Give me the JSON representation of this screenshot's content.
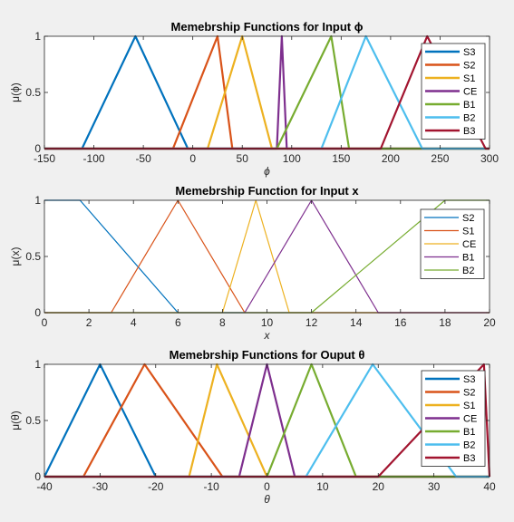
{
  "chart_data": [
    {
      "type": "line",
      "title": "Memebrship Functions for Input ϕ",
      "xlabel": "ϕ",
      "ylabel": "μ(ϕ)",
      "xlim": [
        -150,
        300
      ],
      "ylim": [
        0,
        1
      ],
      "xticks": [
        -150,
        -100,
        -50,
        0,
        50,
        100,
        150,
        200,
        250,
        300
      ],
      "yticks": [
        0,
        0.5,
        1
      ],
      "xtick_labels": [
        "-150",
        "-100",
        "-50",
        "0",
        "50",
        "100",
        "150",
        "200",
        "250",
        "300"
      ],
      "ytick_labels": [
        "0",
        "0.5",
        "1"
      ],
      "grid": false,
      "legend_position": "top-right",
      "series": [
        {
          "name": "S3",
          "color": "#0072bd",
          "x": [
            -150,
            -112,
            -58,
            -5,
            300
          ],
          "y": [
            0,
            0,
            1,
            0,
            0
          ]
        },
        {
          "name": "S2",
          "color": "#d95319",
          "x": [
            -150,
            -20,
            25,
            40,
            300
          ],
          "y": [
            0,
            0,
            1,
            0,
            0
          ]
        },
        {
          "name": "S1",
          "color": "#edb120",
          "x": [
            -150,
            15,
            50,
            80,
            300
          ],
          "y": [
            0,
            0,
            1,
            0,
            0
          ]
        },
        {
          "name": "CE",
          "color": "#7e2f8e",
          "x": [
            -150,
            85,
            90,
            95,
            300
          ],
          "y": [
            0,
            0,
            1,
            0,
            0
          ]
        },
        {
          "name": "B1",
          "color": "#77ac30",
          "x": [
            -150,
            85,
            140,
            158,
            300
          ],
          "y": [
            0,
            0,
            1,
            0,
            0
          ]
        },
        {
          "name": "B2",
          "color": "#4dbeee",
          "x": [
            -150,
            130,
            175,
            232,
            300
          ],
          "y": [
            0,
            0,
            1,
            0,
            0
          ]
        },
        {
          "name": "B3",
          "color": "#a2142f",
          "x": [
            -150,
            190,
            237,
            296,
            300
          ],
          "y": [
            0,
            0,
            1,
            0,
            0
          ]
        }
      ]
    },
    {
      "type": "line",
      "title": "Memebrship Function for Input x",
      "xlabel": "x",
      "ylabel": "μ(x)",
      "xlim": [
        0,
        20
      ],
      "ylim": [
        0,
        1
      ],
      "xticks": [
        0,
        2,
        4,
        6,
        8,
        10,
        12,
        14,
        16,
        18,
        20
      ],
      "yticks": [
        0,
        0.5,
        1
      ],
      "xtick_labels": [
        "0",
        "2",
        "4",
        "6",
        "8",
        "10",
        "12",
        "14",
        "16",
        "18",
        "20"
      ],
      "ytick_labels": [
        "0",
        "0.5",
        "1"
      ],
      "grid": false,
      "legend_position": "top-right",
      "series": [
        {
          "name": "S2",
          "color": "#0072bd",
          "x": [
            0,
            1.6,
            6,
            20
          ],
          "y": [
            1,
            1,
            0,
            0
          ]
        },
        {
          "name": "S1",
          "color": "#d95319",
          "x": [
            0,
            3,
            6,
            9,
            20
          ],
          "y": [
            0,
            0,
            1,
            0,
            0
          ]
        },
        {
          "name": "CE",
          "color": "#edb120",
          "x": [
            0,
            8,
            9.5,
            11,
            20
          ],
          "y": [
            0,
            0,
            1,
            0,
            0
          ]
        },
        {
          "name": "B1",
          "color": "#7e2f8e",
          "x": [
            0,
            9,
            12,
            15,
            20
          ],
          "y": [
            0,
            0,
            1,
            0,
            0
          ]
        },
        {
          "name": "B2",
          "color": "#77ac30",
          "x": [
            0,
            12,
            18,
            20
          ],
          "y": [
            0,
            0,
            1,
            1
          ]
        }
      ]
    },
    {
      "type": "line",
      "title": "Memebrship Functions for Ouput θ",
      "xlabel": "θ",
      "ylabel": "μ(θ)",
      "xlim": [
        -40,
        40
      ],
      "ylim": [
        0,
        1
      ],
      "xticks": [
        -40,
        -30,
        -20,
        -10,
        0,
        10,
        20,
        30,
        40
      ],
      "yticks": [
        0,
        0.5,
        1
      ],
      "xtick_labels": [
        "-40",
        "-30",
        "-20",
        "-10",
        "0",
        "10",
        "20",
        "30",
        "40"
      ],
      "ytick_labels": [
        "0",
        "0.5",
        "1"
      ],
      "grid": false,
      "legend_position": "top-right",
      "series": [
        {
          "name": "S3",
          "color": "#0072bd",
          "x": [
            -40,
            -30,
            -20,
            40
          ],
          "y": [
            0,
            1,
            0,
            0
          ]
        },
        {
          "name": "S2",
          "color": "#d95319",
          "x": [
            -40,
            -33,
            -22,
            -8,
            40
          ],
          "y": [
            0,
            0,
            1,
            0,
            0
          ]
        },
        {
          "name": "S1",
          "color": "#edb120",
          "x": [
            -40,
            -14,
            -9,
            0,
            40
          ],
          "y": [
            0,
            0,
            1,
            0,
            0
          ]
        },
        {
          "name": "CE",
          "color": "#7e2f8e",
          "x": [
            -40,
            -5,
            0,
            5,
            40
          ],
          "y": [
            0,
            0,
            1,
            0,
            0
          ]
        },
        {
          "name": "B1",
          "color": "#77ac30",
          "x": [
            -40,
            0,
            8,
            16,
            40
          ],
          "y": [
            0,
            0,
            1,
            0,
            0
          ]
        },
        {
          "name": "B2",
          "color": "#4dbeee",
          "x": [
            -40,
            7,
            19,
            34,
            40
          ],
          "y": [
            0,
            0,
            1,
            0,
            0
          ]
        },
        {
          "name": "B3",
          "color": "#a2142f",
          "x": [
            -40,
            20,
            39,
            40
          ],
          "y": [
            0,
            0,
            1,
            0
          ]
        }
      ]
    }
  ]
}
